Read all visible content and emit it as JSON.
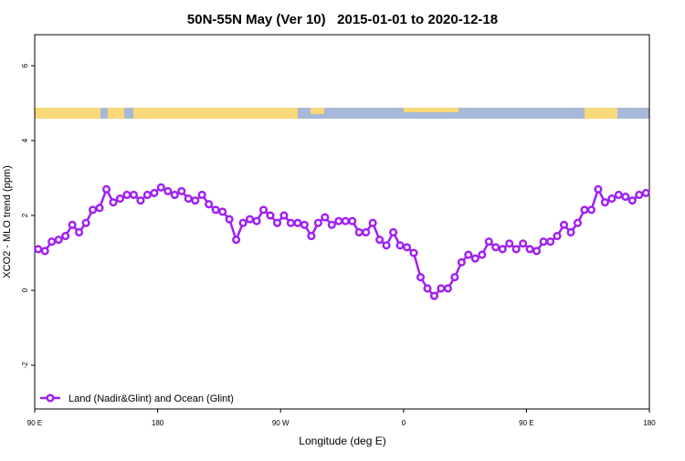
{
  "chart_data": {
    "type": "line",
    "title": "50N-55N May (Ver 10)   2015-01-01 to 2020-12-18",
    "x_label": "Longitude (deg E)",
    "y_label": "XCO2 - MLO trend (ppm)",
    "xlim": [
      90,
      540
    ],
    "ylim": [
      -3.17,
      6.83
    ],
    "xticks": [
      {
        "value": 90,
        "label": "90 E"
      },
      180,
      {
        "value": 270,
        "label": "90 W"
      },
      {
        "value": 360,
        "label": "0"
      },
      {
        "value": 450,
        "label": "90 E"
      },
      {
        "value": 540,
        "label": "180"
      }
    ],
    "yticks": [
      -2,
      0,
      2,
      4,
      6
    ],
    "legend": "bottom-left",
    "x": [
      92.5,
      97.5,
      102.5,
      107.5,
      112.5,
      117.5,
      122.5,
      127.5,
      132.5,
      137.5,
      142.5,
      147.5,
      152.5,
      157.5,
      162.5,
      167.5,
      172.5,
      177.5,
      182.5,
      187.5,
      192.5,
      197.5,
      202.5,
      207.5,
      212.5,
      217.5,
      222.5,
      227.5,
      232.5,
      237.5,
      242.5,
      247.5,
      252.5,
      257.5,
      262.5,
      267.5,
      272.5,
      277.5,
      282.5,
      287.5,
      292.5,
      297.5,
      302.5,
      307.5,
      312.5,
      317.5,
      322.5,
      327.5,
      332.5,
      337.5,
      342.5,
      347.5,
      352.5,
      357.5,
      362.5,
      367.5,
      372.5,
      377.5,
      382.5,
      387.5,
      392.5,
      397.5,
      402.5,
      407.5,
      412.5,
      417.5,
      422.5,
      427.5,
      432.5,
      437.5,
      442.5,
      447.5,
      452.5,
      457.5,
      462.5,
      467.5,
      472.5,
      477.5,
      482.5,
      487.5,
      492.5,
      497.5,
      502.5,
      507.5,
      512.5,
      517.5,
      522.5,
      527.5,
      532.5,
      537.5
    ],
    "series": [
      {
        "name": "Land (Nadir&Glint) and Ocean (Glint)",
        "color": "#a020f0",
        "values": [
          1.1,
          1.05,
          1.3,
          1.35,
          1.45,
          1.75,
          1.55,
          1.8,
          2.15,
          2.2,
          2.7,
          2.35,
          2.45,
          2.55,
          2.55,
          2.4,
          2.55,
          2.6,
          2.75,
          2.65,
          2.55,
          2.65,
          2.45,
          2.4,
          2.55,
          2.3,
          2.15,
          2.1,
          1.9,
          1.35,
          1.8,
          1.9,
          1.85,
          2.15,
          2.0,
          1.8,
          2.0,
          1.8,
          1.8,
          1.75,
          1.45,
          1.8,
          1.95,
          1.75,
          1.85,
          1.85,
          1.85,
          1.55,
          1.55,
          1.8,
          1.35,
          1.2,
          1.55,
          1.2,
          1.15,
          1.0,
          0.35,
          0.05,
          -0.15,
          0.05,
          0.05,
          0.35,
          0.75,
          0.95,
          0.85,
          0.95,
          1.3,
          1.15,
          1.1,
          1.25,
          1.1,
          1.25,
          1.1,
          1.05,
          1.3,
          1.3,
          1.45,
          1.75,
          1.55,
          1.8,
          2.15,
          2.15,
          2.7,
          2.35,
          2.45,
          2.55,
          2.5,
          2.4,
          2.55,
          2.6
        ]
      }
    ]
  }
}
